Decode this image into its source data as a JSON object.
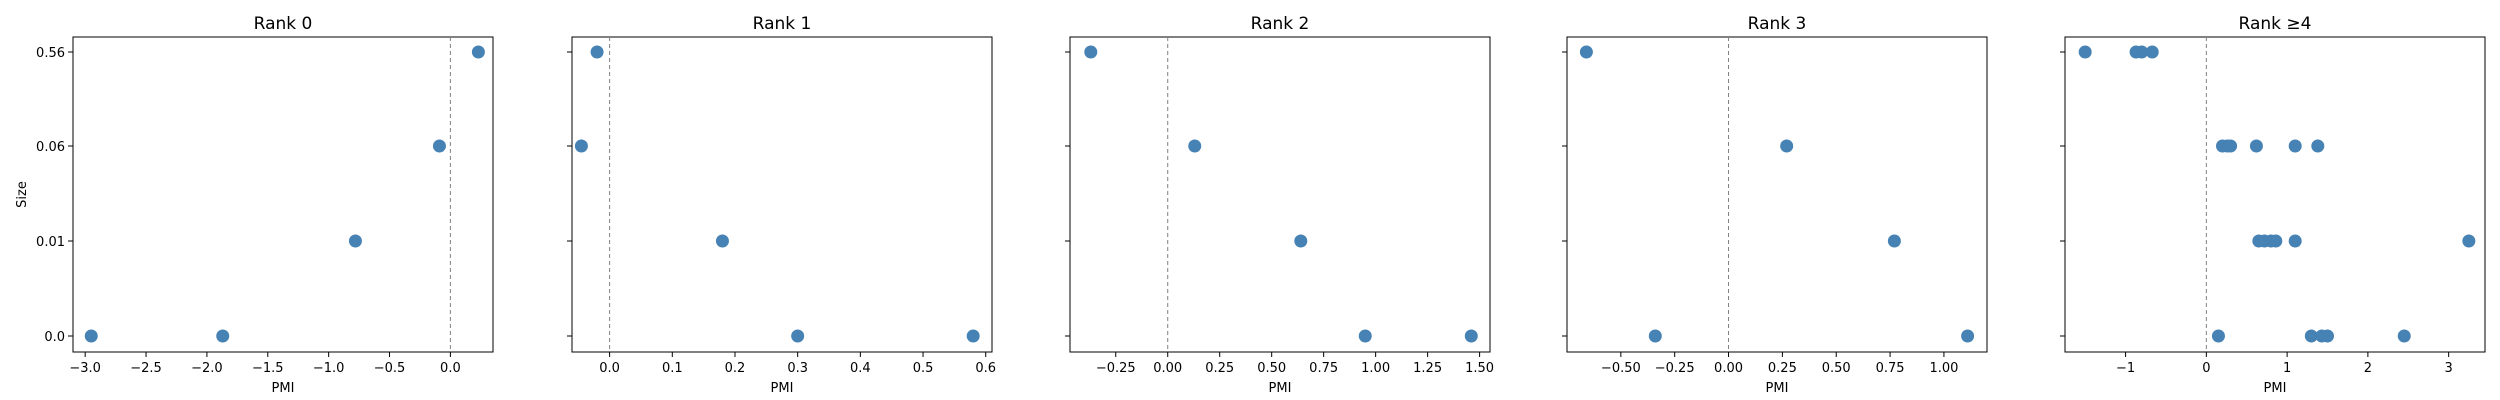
{
  "chart_data": {
    "type": "scatter",
    "shared_y": true,
    "y_categories": [
      "0.0",
      "0.01",
      "0.06",
      "0.56"
    ],
    "ylabel": "Size",
    "xlabel": "PMI",
    "point_color": "#4682b4",
    "reference_line_color": "#808080",
    "reference_x": 0,
    "panels": [
      {
        "title": "Rank 0",
        "xlim": [
          -3.1,
          0.35
        ],
        "xticks": [
          -3.0,
          -2.5,
          -2.0,
          -1.5,
          -1.0,
          -0.5,
          0.0
        ],
        "xtick_labels": [
          "−3.0",
          "−2.5",
          "−2.0",
          "−1.5",
          "−1.0",
          "−0.5",
          "0.0"
        ],
        "points": [
          {
            "x": -2.95,
            "y": "0.0"
          },
          {
            "x": -1.87,
            "y": "0.0"
          },
          {
            "x": -0.78,
            "y": "0.01"
          },
          {
            "x": -0.09,
            "y": "0.06"
          },
          {
            "x": 0.23,
            "y": "0.56"
          }
        ]
      },
      {
        "title": "Rank 1",
        "xlim": [
          -0.06,
          0.61
        ],
        "xticks": [
          0.0,
          0.1,
          0.2,
          0.3,
          0.4,
          0.5,
          0.6
        ],
        "xtick_labels": [
          "0.0",
          "0.1",
          "0.2",
          "0.3",
          "0.4",
          "0.5",
          "0.6"
        ],
        "points": [
          {
            "x": -0.045,
            "y": "0.06"
          },
          {
            "x": -0.02,
            "y": "0.56"
          },
          {
            "x": 0.18,
            "y": "0.01"
          },
          {
            "x": 0.3,
            "y": "0.0"
          },
          {
            "x": 0.58,
            "y": "0.0"
          }
        ]
      },
      {
        "title": "Rank 2",
        "xlim": [
          -0.47,
          1.55
        ],
        "xticks": [
          -0.25,
          0.0,
          0.25,
          0.5,
          0.75,
          1.0,
          1.25,
          1.5
        ],
        "xtick_labels": [
          "−0.25",
          "0.00",
          "0.25",
          "0.50",
          "0.75",
          "1.00",
          "1.25",
          "1.50"
        ],
        "points": [
          {
            "x": -0.37,
            "y": "0.56"
          },
          {
            "x": 0.13,
            "y": "0.06"
          },
          {
            "x": 0.64,
            "y": "0.01"
          },
          {
            "x": 0.95,
            "y": "0.0"
          },
          {
            "x": 1.46,
            "y": "0.0"
          }
        ]
      },
      {
        "title": "Rank 3",
        "xlim": [
          -0.75,
          1.2
        ],
        "xticks": [
          -0.5,
          -0.25,
          0.0,
          0.25,
          0.5,
          0.75,
          1.0
        ],
        "xtick_labels": [
          "−0.50",
          "−0.25",
          "0.00",
          "0.25",
          "0.50",
          "0.75",
          "1.00"
        ],
        "points": [
          {
            "x": -0.66,
            "y": "0.56"
          },
          {
            "x": -0.34,
            "y": "0.0"
          },
          {
            "x": 0.27,
            "y": "0.06"
          },
          {
            "x": 0.77,
            "y": "0.01"
          },
          {
            "x": 1.11,
            "y": "0.0"
          }
        ]
      },
      {
        "title": "Rank ≥4",
        "xlim": [
          -1.75,
          3.45
        ],
        "xticks": [
          -1,
          0,
          1,
          2,
          3
        ],
        "xtick_labels": [
          "−1",
          "0",
          "1",
          "2",
          "3"
        ],
        "points": [
          {
            "x": -1.5,
            "y": "0.56"
          },
          {
            "x": -0.87,
            "y": "0.56"
          },
          {
            "x": -0.8,
            "y": "0.56"
          },
          {
            "x": -0.67,
            "y": "0.56"
          },
          {
            "x": 0.2,
            "y": "0.06"
          },
          {
            "x": 0.26,
            "y": "0.06"
          },
          {
            "x": 0.3,
            "y": "0.06"
          },
          {
            "x": 0.62,
            "y": "0.06"
          },
          {
            "x": 1.1,
            "y": "0.06"
          },
          {
            "x": 1.38,
            "y": "0.06"
          },
          {
            "x": 0.65,
            "y": "0.01"
          },
          {
            "x": 0.72,
            "y": "0.01"
          },
          {
            "x": 0.8,
            "y": "0.01"
          },
          {
            "x": 0.86,
            "y": "0.01"
          },
          {
            "x": 1.1,
            "y": "0.01"
          },
          {
            "x": 3.25,
            "y": "0.01"
          },
          {
            "x": 0.15,
            "y": "0.0"
          },
          {
            "x": 1.3,
            "y": "0.0"
          },
          {
            "x": 1.43,
            "y": "0.0"
          },
          {
            "x": 1.5,
            "y": "0.0"
          },
          {
            "x": 2.45,
            "y": "0.0"
          }
        ]
      }
    ]
  }
}
